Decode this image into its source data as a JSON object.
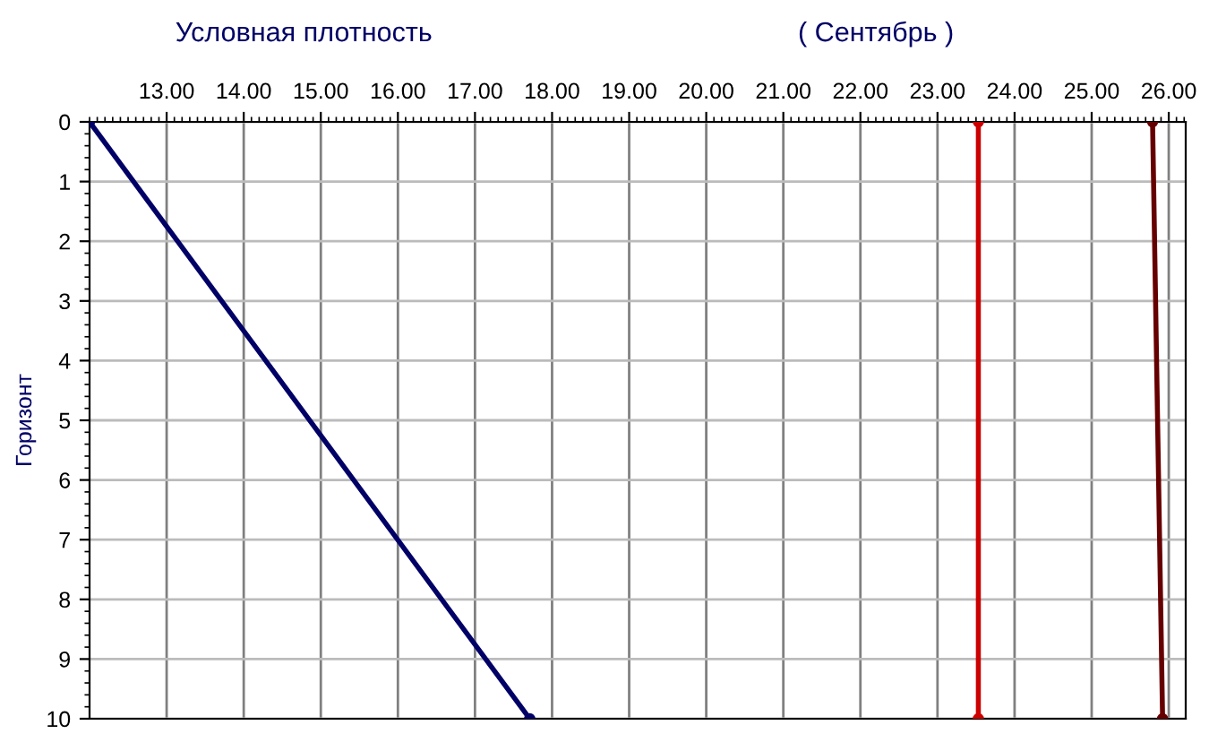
{
  "chart_data": {
    "type": "line",
    "title": "Условная плотность",
    "subtitle": "( Сентябрь )",
    "ylabel": "Горизонт",
    "series": [
      {
        "color": "#000066",
        "x": [
          12.0,
          17.71
        ],
        "values": [
          0,
          10
        ]
      },
      {
        "color": "#cc0000",
        "x": [
          23.53,
          23.53
        ],
        "values": [
          0,
          10
        ]
      },
      {
        "color": "#660000",
        "x": [
          25.79,
          25.92
        ],
        "values": [
          0,
          10
        ]
      }
    ],
    "xlim": [
      12.0,
      26.22
    ],
    "ylim": [
      10,
      0
    ],
    "xticks": [
      {
        "value": 13,
        "label": "13.00"
      },
      {
        "value": 14,
        "label": "14.00"
      },
      {
        "value": 15,
        "label": "15.00"
      },
      {
        "value": 16,
        "label": "16.00"
      },
      {
        "value": 17,
        "label": "17.00"
      },
      {
        "value": 18,
        "label": "18.00"
      },
      {
        "value": 19,
        "label": "19.00"
      },
      {
        "value": 20,
        "label": "20.00"
      },
      {
        "value": 21,
        "label": "21.00"
      },
      {
        "value": 22,
        "label": "22.00"
      },
      {
        "value": 23,
        "label": "23.00"
      },
      {
        "value": 24,
        "label": "24.00"
      },
      {
        "value": 25,
        "label": "25.00"
      },
      {
        "value": 26,
        "label": "26.00"
      }
    ],
    "yticks": [
      0,
      1,
      2,
      3,
      4,
      5,
      6,
      7,
      8,
      9,
      10
    ],
    "grid": true,
    "marker": "circle",
    "line_style": "solid"
  }
}
